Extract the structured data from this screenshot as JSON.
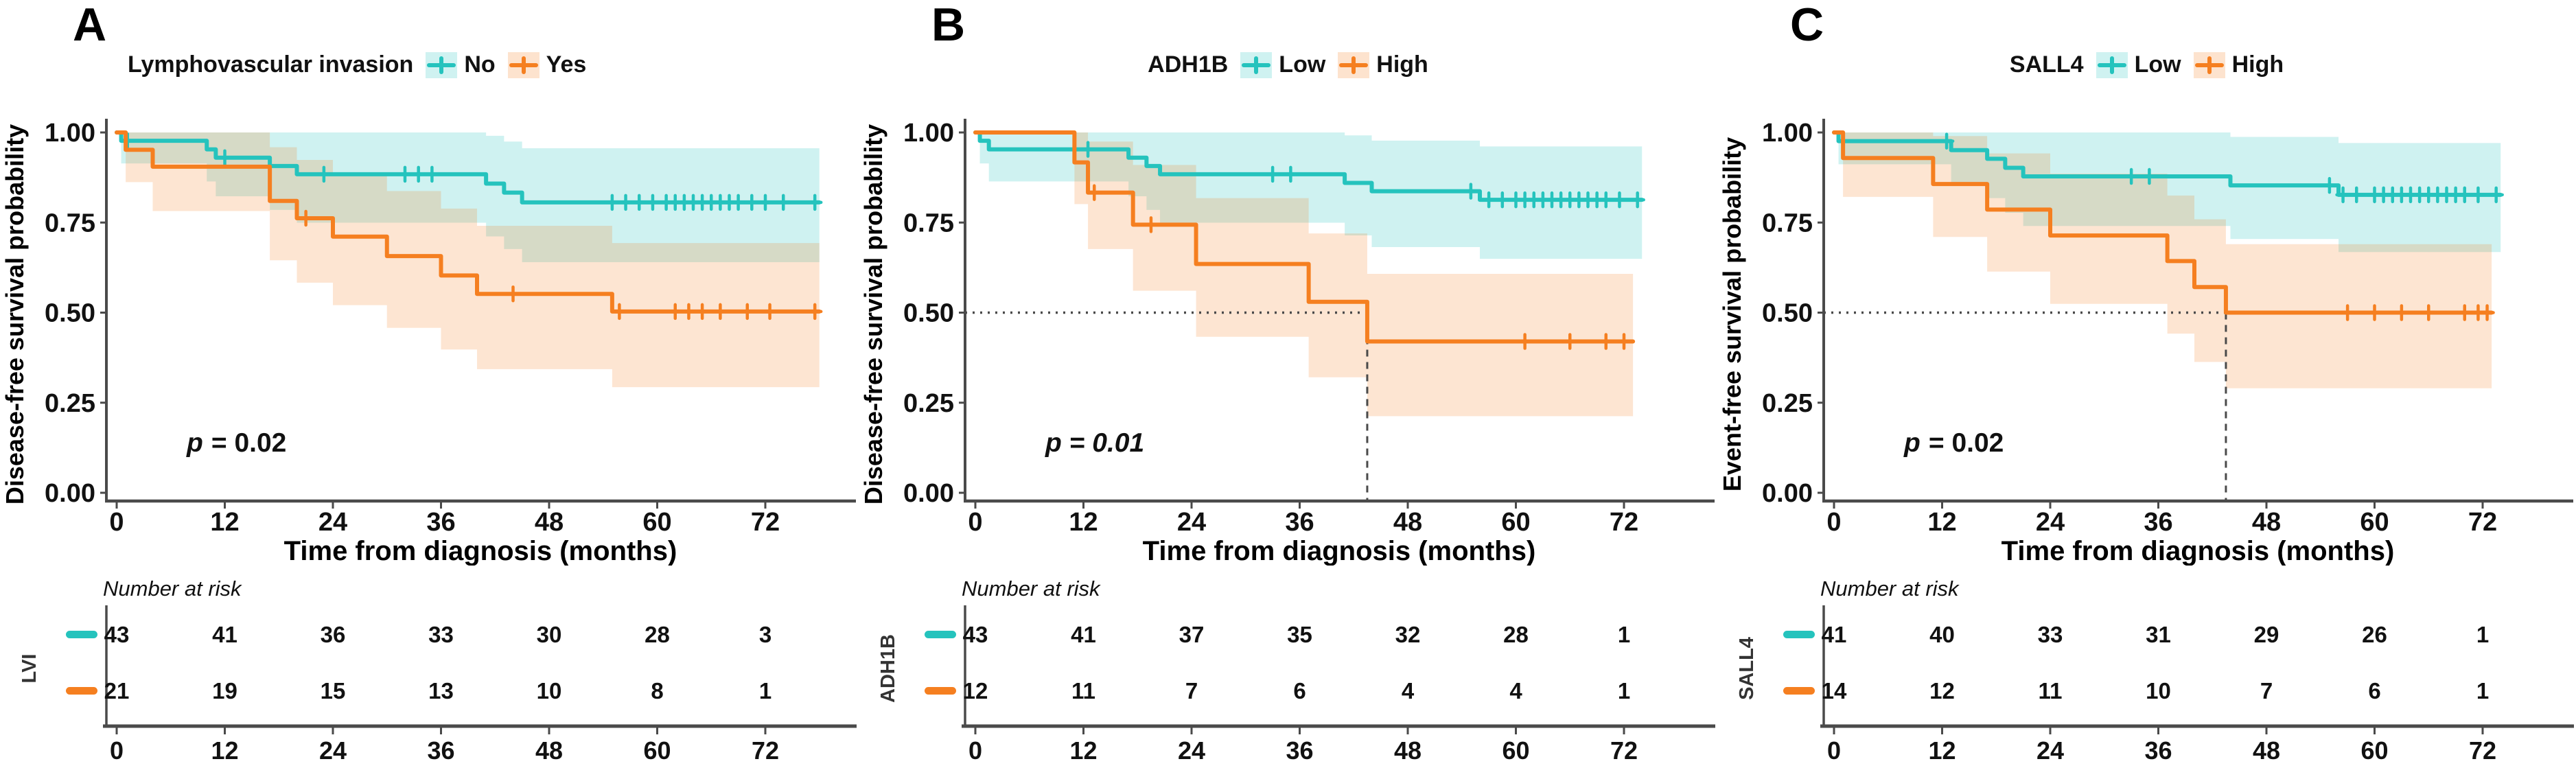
{
  "figure": {
    "panels": [
      {
        "letter": "A",
        "legend_title": "Lymphovascular invasion",
        "groups": [
          {
            "label": "No"
          },
          {
            "label": "Yes"
          }
        ],
        "p_value": "p = 0.02",
        "ylabel": "Disease-free survival probability",
        "xlabel": "Time from diagnosis (months)",
        "risk_group": "LVI",
        "risk_title": "Number at risk"
      },
      {
        "letter": "B",
        "legend_title": "ADH1B",
        "groups": [
          {
            "label": "Low"
          },
          {
            "label": "High"
          }
        ],
        "p_value": "p = 0.01",
        "ylabel": "Disease-free survival probability",
        "xlabel": "Time from diagnosis (months)",
        "risk_group": "ADH1B",
        "risk_title": "Number at risk"
      },
      {
        "letter": "C",
        "legend_title": "SALL4",
        "groups": [
          {
            "label": "Low"
          },
          {
            "label": "High"
          }
        ],
        "p_value": "p = 0.02",
        "ylabel": "Event-free survival probability",
        "xlabel": "Time from diagnosis (months)",
        "risk_group": "SALL4",
        "risk_title": "Number at risk"
      }
    ],
    "colors": {
      "teal": "#25c3bd",
      "orange": "#f57f20",
      "axis": "#4a4a4a",
      "text": "#111111"
    }
  },
  "chart_data": [
    {
      "type": "line",
      "subtype": "kaplan-meier",
      "title": "Lymphovascular invasion",
      "xlabel": "Time from diagnosis (months)",
      "ylabel": "Disease-free survival probability",
      "xlim": [
        0,
        79
      ],
      "ylim": [
        0,
        1.0
      ],
      "xticks": [
        0,
        12,
        24,
        36,
        48,
        60,
        72
      ],
      "yticks": [
        "0.00",
        "0.25",
        "0.50",
        "0.75",
        "1.00"
      ],
      "p_label": "p = 0.02",
      "p_style": "italic-p",
      "median_line": null,
      "legend_position": "top",
      "series": [
        {
          "name": "No",
          "color": "#25c3bd",
          "band_opacity": 0.22,
          "end": 78,
          "steps": [
            [
              0,
              1.0
            ],
            [
              0.5,
              0.977
            ],
            [
              10,
              0.953
            ],
            [
              11,
              0.93
            ],
            [
              17,
              0.907
            ],
            [
              20,
              0.884
            ],
            [
              41,
              0.858
            ],
            [
              43,
              0.833
            ],
            [
              45,
              0.806
            ]
          ],
          "censors": [
            1.2,
            12,
            23,
            32,
            33.5,
            35,
            55,
            56.5,
            58,
            59.5,
            61,
            62,
            63,
            64,
            65,
            66,
            67,
            68,
            69,
            70.5,
            72,
            74,
            77.5
          ]
        },
        {
          "name": "Yes",
          "color": "#f57f20",
          "band_opacity": 0.2,
          "end": 78,
          "steps": [
            [
              0,
              1.0
            ],
            [
              1,
              0.952
            ],
            [
              4,
              0.905
            ],
            [
              17,
              0.81
            ],
            [
              20,
              0.762
            ],
            [
              24,
              0.711
            ],
            [
              30,
              0.657
            ],
            [
              36,
              0.603
            ],
            [
              40,
              0.552
            ],
            [
              55,
              0.503
            ]
          ],
          "censors": [
            21,
            44,
            55.8,
            62,
            63.5,
            65,
            67,
            70,
            72.5,
            77.5
          ]
        }
      ],
      "risk_table": {
        "title": "Number at risk",
        "group": "LVI",
        "times": [
          0,
          12,
          24,
          36,
          48,
          60,
          72
        ],
        "rows": [
          {
            "name": "No",
            "color": "#25c3bd",
            "counts": [
              43,
              41,
              36,
              33,
              30,
              28,
              3
            ]
          },
          {
            "name": "Yes",
            "color": "#f57f20",
            "counts": [
              21,
              19,
              15,
              13,
              10,
              8,
              1
            ]
          }
        ]
      }
    },
    {
      "type": "line",
      "subtype": "kaplan-meier",
      "title": "ADH1B",
      "xlabel": "Time from diagnosis (months)",
      "ylabel": "Disease-free survival probability",
      "xlim": [
        0,
        79
      ],
      "ylim": [
        0,
        1.0
      ],
      "xticks": [
        0,
        12,
        24,
        36,
        48,
        60,
        72
      ],
      "yticks": [
        "0.00",
        "0.25",
        "0.50",
        "0.75",
        "1.00"
      ],
      "p_label": "p = 0.01",
      "p_style": "italic-all",
      "median_line": {
        "x": 43.5,
        "y": 0.5
      },
      "legend_position": "top",
      "series": [
        {
          "name": "Low",
          "color": "#25c3bd",
          "band_opacity": 0.22,
          "end": 74,
          "steps": [
            [
              0,
              1.0
            ],
            [
              0.5,
              0.977
            ],
            [
              1.5,
              0.953
            ],
            [
              17,
              0.93
            ],
            [
              19,
              0.907
            ],
            [
              20.5,
              0.884
            ],
            [
              41,
              0.86
            ],
            [
              44,
              0.837
            ],
            [
              56,
              0.813
            ]
          ],
          "censors": [
            12.5,
            33,
            35,
            55,
            57,
            58.5,
            60,
            61,
            62,
            63,
            64,
            65,
            66,
            67,
            68,
            69,
            70,
            71.5,
            73.5
          ]
        },
        {
          "name": "High",
          "color": "#f57f20",
          "band_opacity": 0.2,
          "end": 73,
          "steps": [
            [
              0,
              1.0
            ],
            [
              11,
              0.917
            ],
            [
              12.5,
              0.833
            ],
            [
              17.5,
              0.744
            ],
            [
              24.5,
              0.635
            ],
            [
              37,
              0.53
            ],
            [
              43.5,
              0.42
            ]
          ],
          "censors": [
            13.2,
            19.5,
            61,
            66,
            70,
            72
          ]
        }
      ],
      "risk_table": {
        "title": "Number at risk",
        "group": "ADH1B",
        "times": [
          0,
          12,
          24,
          36,
          48,
          60,
          72
        ],
        "rows": [
          {
            "name": "Low",
            "color": "#25c3bd",
            "counts": [
              43,
              41,
              37,
              35,
              32,
              28,
              1
            ]
          },
          {
            "name": "High",
            "color": "#f57f20",
            "counts": [
              12,
              11,
              7,
              6,
              4,
              4,
              1
            ]
          }
        ]
      }
    },
    {
      "type": "line",
      "subtype": "kaplan-meier",
      "title": "SALL4",
      "xlabel": "Time from diagnosis (months)",
      "ylabel": "Event-free survival probability",
      "xlim": [
        0,
        79
      ],
      "ylim": [
        0,
        1.0
      ],
      "xticks": [
        0,
        12,
        24,
        36,
        48,
        60,
        72
      ],
      "yticks": [
        "0.00",
        "0.25",
        "0.50",
        "0.75",
        "1.00"
      ],
      "p_label": "p = 0.02",
      "p_style": "italic-p",
      "median_line": {
        "x": 43.5,
        "y": 0.5
      },
      "legend_position": "top",
      "series": [
        {
          "name": "Low",
          "color": "#25c3bd",
          "band_opacity": 0.22,
          "end": 74,
          "steps": [
            [
              0,
              1.0
            ],
            [
              0.5,
              0.976
            ],
            [
              13,
              0.951
            ],
            [
              17,
              0.927
            ],
            [
              19,
              0.902
            ],
            [
              21,
              0.878
            ],
            [
              44,
              0.853
            ],
            [
              56,
              0.827
            ]
          ],
          "censors": [
            12.5,
            33,
            35,
            55,
            56.5,
            58,
            60,
            61,
            62,
            63,
            64,
            65,
            66,
            67,
            68,
            69,
            70,
            71.5,
            73.5
          ]
        },
        {
          "name": "High",
          "color": "#f57f20",
          "band_opacity": 0.2,
          "end": 73,
          "steps": [
            [
              0,
              1.0
            ],
            [
              1,
              0.929
            ],
            [
              11,
              0.857
            ],
            [
              17,
              0.786
            ],
            [
              24,
              0.714
            ],
            [
              37,
              0.643
            ],
            [
              40,
              0.571
            ],
            [
              43.5,
              0.5
            ]
          ],
          "censors": [
            57,
            60,
            63,
            66,
            70,
            71.5,
            72.5
          ]
        }
      ],
      "risk_table": {
        "title": "Number at risk",
        "group": "SALL4",
        "times": [
          0,
          12,
          24,
          36,
          48,
          60,
          72
        ],
        "rows": [
          {
            "name": "Low",
            "color": "#25c3bd",
            "counts": [
              41,
              40,
              33,
              31,
              29,
              26,
              1
            ]
          },
          {
            "name": "High",
            "color": "#f57f20",
            "counts": [
              14,
              12,
              11,
              10,
              7,
              6,
              1
            ]
          }
        ]
      }
    }
  ]
}
